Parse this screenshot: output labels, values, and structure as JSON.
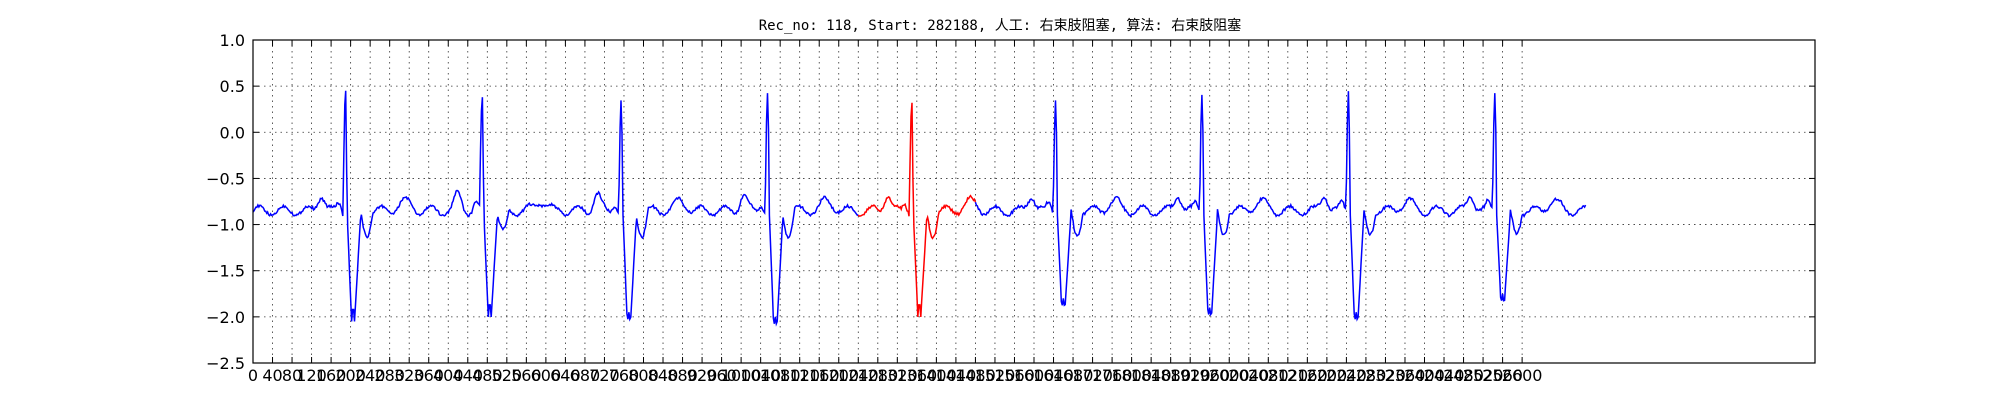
{
  "chart_data": {
    "type": "line",
    "title": "Rec_no: 118, Start: 282188, 人工: 右束肢阻塞, 算法: 右束肢阻塞",
    "xlabel": "",
    "ylabel": "",
    "xlim": [
      0,
      3200
    ],
    "ylim": [
      -2.5,
      1.0
    ],
    "grid": true,
    "yticks": [
      1.0,
      0.5,
      0.0,
      -0.5,
      -1.0,
      -1.5,
      -2.0,
      -2.5
    ],
    "yticklabels": [
      "1.0",
      "0.5",
      "0.0",
      "−0.5",
      "−1.0",
      "−1.5",
      "−2.0",
      "−2.5"
    ],
    "xticks": [
      0,
      40,
      80,
      120,
      160,
      200,
      240,
      280,
      320,
      360,
      400,
      440,
      480,
      520,
      560,
      600,
      640,
      680,
      720,
      760,
      800,
      840,
      880,
      920,
      960,
      1000,
      1040,
      1080,
      1120,
      1160,
      1200,
      1240,
      1280,
      1320,
      1360,
      1400,
      1440,
      1480,
      1520,
      1560,
      1600,
      1640,
      1680,
      1720,
      1760,
      1800,
      1840,
      1880,
      1920,
      1960,
      2000,
      2040,
      2080,
      2120,
      2160,
      2200,
      2240,
      2280,
      2320,
      2360,
      2400,
      2440,
      2480,
      2520,
      2560,
      2600
    ],
    "series": [
      {
        "color": "#0000ff",
        "segments": [
          [
            0,
            2730
          ]
        ],
        "highlight": {
          "color": "#ff0000",
          "from": 1240,
          "to": 1480
        },
        "beats": [
          {
            "r": 190,
            "amp": 0.45,
            "s": -2.05
          },
          {
            "r": 470,
            "amp": 0.38,
            "s": -2.0
          },
          {
            "r": 755,
            "amp": 0.42,
            "s": -2.1
          },
          {
            "r": 1055,
            "amp": 0.5,
            "s": -2.15
          },
          {
            "r": 1350,
            "amp": 0.32,
            "s": -2.0
          },
          {
            "r": 1645,
            "amp": 0.42,
            "s": -1.95
          },
          {
            "r": 1945,
            "amp": 0.48,
            "s": -2.05
          },
          {
            "r": 2245,
            "amp": 0.52,
            "s": -2.1
          },
          {
            "r": 2545,
            "amp": 0.5,
            "s": -1.9
          }
        ],
        "baseline": -0.85
      }
    ]
  }
}
